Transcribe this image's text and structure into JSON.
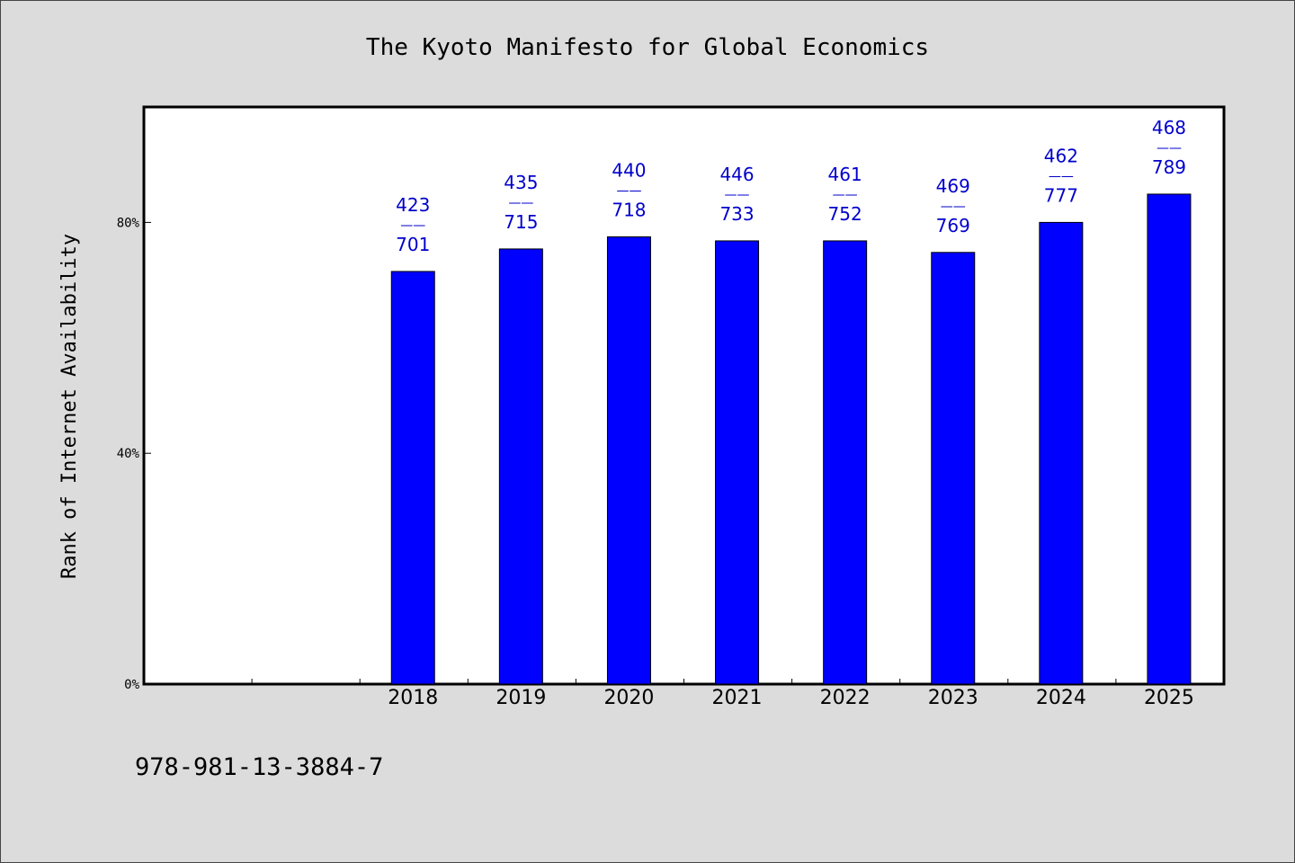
{
  "chart_data": {
    "type": "bar",
    "title": "The Kyoto Manifesto for Global Economics",
    "xlabel": "",
    "ylabel": "Rank of Internet Availability",
    "ylim": [
      0,
      100
    ],
    "y_ticks": [
      0,
      40,
      80
    ],
    "y_tick_labels": [
      "0%",
      "40%",
      "80%"
    ],
    "categories": [
      "",
      "",
      "2018",
      "2019",
      "2020",
      "2021",
      "2022",
      "2023",
      "2024",
      "2025"
    ],
    "values": [
      null,
      null,
      71.5,
      75.4,
      77.5,
      76.8,
      76.8,
      74.8,
      80.0,
      84.9
    ],
    "data_labels": [
      null,
      null,
      {
        "top": "423",
        "sep": "——",
        "bottom": "701"
      },
      {
        "top": "435",
        "sep": "——",
        "bottom": "715"
      },
      {
        "top": "440",
        "sep": "——",
        "bottom": "718"
      },
      {
        "top": "446",
        "sep": "——",
        "bottom": "733"
      },
      {
        "top": "461",
        "sep": "——",
        "bottom": "752"
      },
      {
        "top": "469",
        "sep": "——",
        "bottom": "769"
      },
      {
        "top": "462",
        "sep": "——",
        "bottom": "777"
      },
      {
        "top": "468",
        "sep": "——",
        "bottom": "789"
      }
    ],
    "grid": false,
    "legend": "none",
    "bar_color": "#0000ff",
    "label_color": "#0000cc"
  },
  "footer_text": "978-981-13-3884-7"
}
